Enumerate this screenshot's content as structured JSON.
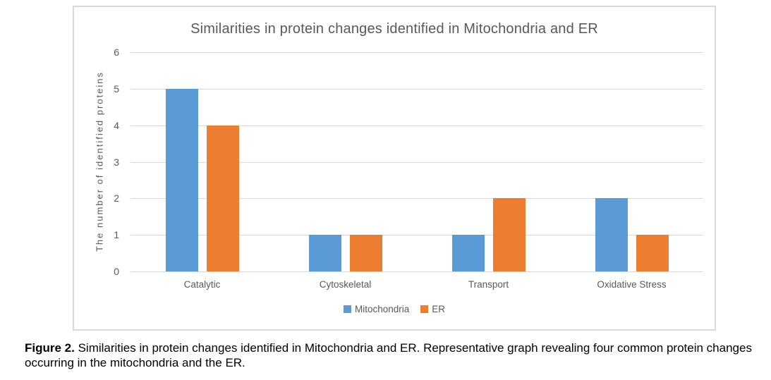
{
  "chart_data": {
    "type": "bar",
    "title": "Similarities in protein changes identified in Mitochondria and ER",
    "categories": [
      "Catalytic",
      "Cytoskeletal",
      "Transport",
      "Oxidative Stress"
    ],
    "series": [
      {
        "name": "Mitochondria",
        "color": "#5b9bd5",
        "values": [
          5,
          1,
          1,
          2
        ]
      },
      {
        "name": "ER",
        "color": "#ed7d31",
        "values": [
          4,
          1,
          2,
          1
        ]
      }
    ],
    "xlabel": "",
    "ylabel": "The number of identified proteins",
    "ylim": [
      0,
      6
    ],
    "ytick_step": 1,
    "grid": true,
    "legend_position": "bottom",
    "colors": {
      "gridline": "#d9d9d9",
      "axis_text": "#595959",
      "title_text": "#595959",
      "chart_border": "#d9d9d9",
      "background": "#ffffff"
    }
  },
  "caption": {
    "label": "Figure 2.",
    "text": " Similarities in protein changes identified in Mitochondria and ER. Representative graph revealing four common protein changes occurring in the mitochondria and the ER."
  }
}
